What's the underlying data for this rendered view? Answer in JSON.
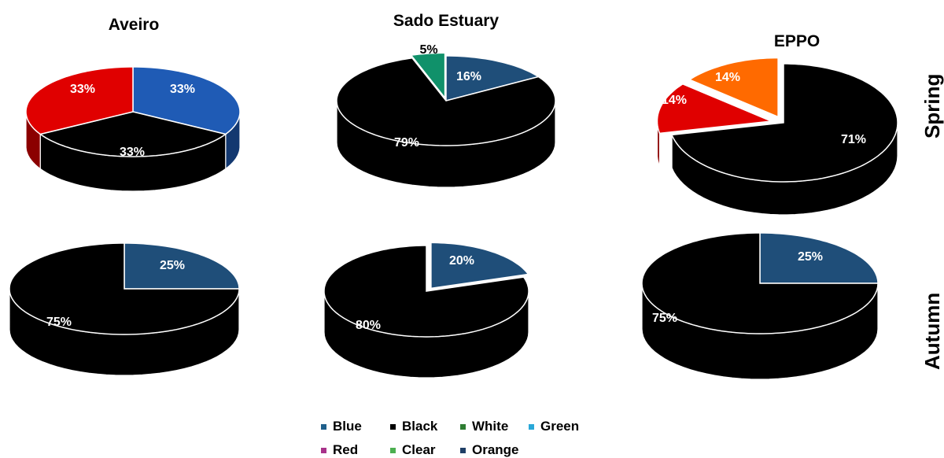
{
  "figure": {
    "columns": [
      "Aveiro",
      "Sado Estuary",
      "EPPO"
    ],
    "rows": [
      "Spring",
      "Autumn"
    ]
  },
  "legend": {
    "items": [
      {
        "label": "Blue",
        "color": "#1f5f8b"
      },
      {
        "label": "Black",
        "color": "#000000"
      },
      {
        "label": "White",
        "color": "#2e7d32"
      },
      {
        "label": "Green",
        "color": "#29a8d8"
      },
      {
        "label": "Red",
        "color": "#a8328a"
      },
      {
        "label": "Clear",
        "color": "#4caf50"
      },
      {
        "label": "Orange",
        "color": "#1f3f66"
      }
    ]
  },
  "chart_data": [
    {
      "type": "pie",
      "title": "Aveiro",
      "row": "Spring",
      "slices": [
        {
          "category": "Blue",
          "value": 33,
          "label": "33%",
          "color": "#1f5bb5"
        },
        {
          "category": "Black",
          "value": 33,
          "label": "33%",
          "color": "#000000"
        },
        {
          "category": "Red",
          "value": 33,
          "label": "33%",
          "color": "#e00000"
        }
      ]
    },
    {
      "type": "pie",
      "title": "Sado Estuary",
      "row": "Spring",
      "slices": [
        {
          "category": "Blue",
          "value": 16,
          "label": "16%",
          "color": "#1f4e79"
        },
        {
          "category": "Black",
          "value": 79,
          "label": "79%",
          "color": "#000000"
        },
        {
          "category": "Green",
          "value": 5,
          "label": "5%",
          "color": "#10916a"
        }
      ]
    },
    {
      "type": "pie",
      "title": "EPPO",
      "row": "Spring",
      "slices": [
        {
          "category": "Black",
          "value": 71,
          "label": "71%",
          "color": "#000000"
        },
        {
          "category": "Red",
          "value": 14,
          "label": "14%",
          "color": "#e00000"
        },
        {
          "category": "Orange",
          "value": 14,
          "label": "14%",
          "color": "#ff6a00"
        }
      ]
    },
    {
      "type": "pie",
      "title": "Aveiro",
      "row": "Autumn",
      "slices": [
        {
          "category": "Blue",
          "value": 25,
          "label": "25%",
          "color": "#1f4e79"
        },
        {
          "category": "Black",
          "value": 75,
          "label": "75%",
          "color": "#000000"
        }
      ]
    },
    {
      "type": "pie",
      "title": "Sado Estuary",
      "row": "Autumn",
      "slices": [
        {
          "category": "Blue",
          "value": 20,
          "label": "20%",
          "color": "#1f4e79"
        },
        {
          "category": "Black",
          "value": 80,
          "label": "80%",
          "color": "#000000"
        }
      ]
    },
    {
      "type": "pie",
      "title": "EPPO",
      "row": "Autumn",
      "slices": [
        {
          "category": "Blue",
          "value": 25,
          "label": "25%",
          "color": "#1f4e79"
        },
        {
          "category": "Black",
          "value": 75,
          "label": "75%",
          "color": "#000000"
        }
      ]
    }
  ]
}
